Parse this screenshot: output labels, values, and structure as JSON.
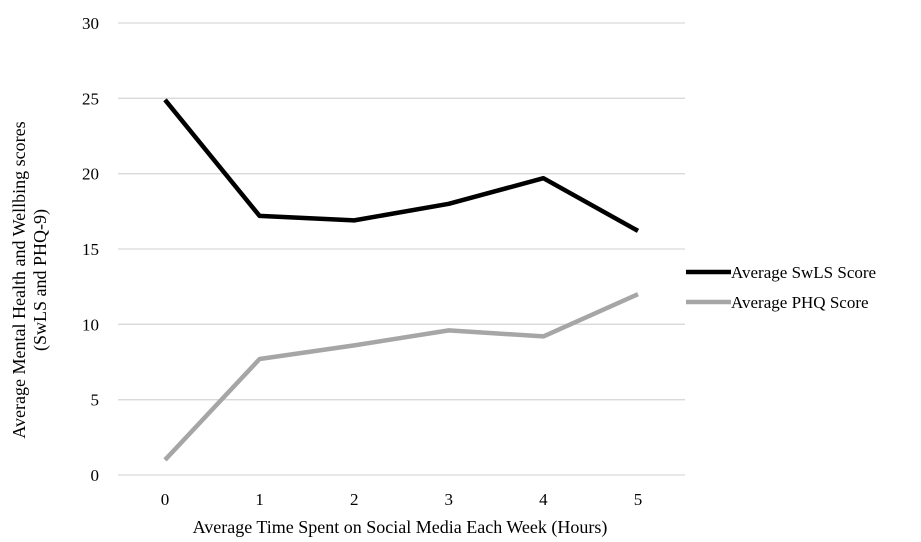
{
  "chart_data": {
    "type": "line",
    "title": "",
    "xlabel": "Average Time Spent on Social Media Each Week (Hours)",
    "ylabel_lines": [
      "Average Mental Health and Wellbing scores",
      "(SwLS and PHQ-9)"
    ],
    "categories": [
      "0",
      "1",
      "2",
      "3",
      "4",
      "5"
    ],
    "y_ticks": [
      "0",
      "5",
      "10",
      "15",
      "20",
      "25",
      "30"
    ],
    "ylim": [
      0,
      30
    ],
    "grid": true,
    "legend_position": "right",
    "series": [
      {
        "name": "Average SwLS Score",
        "color": "#000000",
        "values": [
          24.9,
          17.2,
          16.9,
          18.0,
          19.7,
          16.2
        ]
      },
      {
        "name": "Average PHQ Score",
        "color": "#a6a6a6",
        "values": [
          1.0,
          7.7,
          8.6,
          9.6,
          9.2,
          12.0
        ]
      }
    ]
  }
}
